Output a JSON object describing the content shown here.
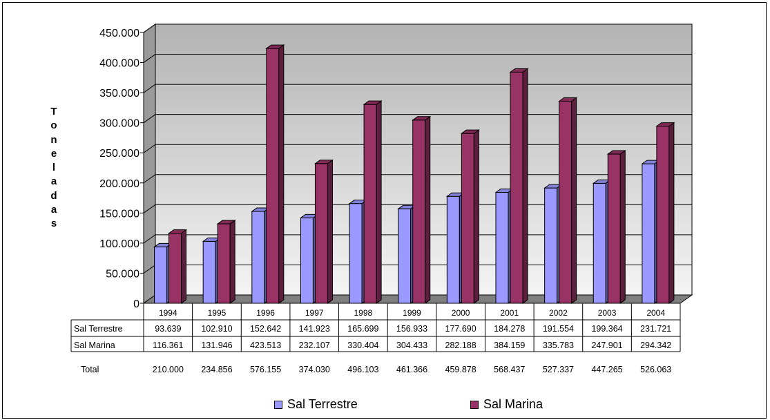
{
  "chart_data": {
    "type": "bar",
    "title": "",
    "xlabel": "",
    "ylabel": "Toneladas",
    "ylim": [
      0,
      450000
    ],
    "yticks": [
      "0",
      "50.000",
      "100.000",
      "150.000",
      "200.000",
      "250.000",
      "300.000",
      "350.000",
      "400.000",
      "450.000"
    ],
    "grid": true,
    "legend_position": "bottom",
    "categories": [
      "1994",
      "1995",
      "1996",
      "1997",
      "1998",
      "1999",
      "2000",
      "2001",
      "2002",
      "2003",
      "2004"
    ],
    "series": [
      {
        "name": "Sal Terrestre",
        "color": "#9999ff",
        "values": [
          93639,
          102910,
          152642,
          141923,
          165699,
          156933,
          177690,
          184278,
          191554,
          199364,
          231721
        ],
        "labels": [
          "93.639",
          "102.910",
          "152.642",
          "141.923",
          "165.699",
          "156.933",
          "177.690",
          "184.278",
          "191.554",
          "199.364",
          "231.721"
        ]
      },
      {
        "name": "Sal Marina",
        "color": "#993366",
        "values": [
          116361,
          131946,
          423513,
          232107,
          330404,
          304433,
          282188,
          384159,
          335783,
          247901,
          294342
        ],
        "labels": [
          "116.361",
          "131.946",
          "423.513",
          "232.107",
          "330.404",
          "304.433",
          "282.188",
          "384.159",
          "335.783",
          "247.901",
          "294.342"
        ]
      }
    ],
    "table": {
      "total_label": "Total",
      "totals": [
        "210.000",
        "234.856",
        "576.155",
        "374.030",
        "496.103",
        "461.366",
        "459.878",
        "568.437",
        "527.337",
        "447.265",
        "526.063"
      ]
    }
  }
}
